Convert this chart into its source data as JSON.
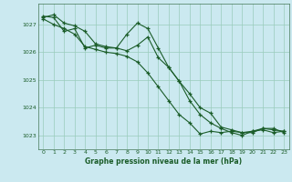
{
  "background_color": "#cbe9f0",
  "plot_bg_color": "#cbe9f0",
  "grid_color": "#99ccbb",
  "line_color": "#1a5c28",
  "xlabel": "Graphe pression niveau de la mer (hPa)",
  "ylim": [
    1022.5,
    1027.75
  ],
  "xlim": [
    -0.5,
    23.5
  ],
  "yticks": [
    1023,
    1024,
    1025,
    1026,
    1027
  ],
  "xticks": [
    0,
    1,
    2,
    3,
    4,
    5,
    6,
    7,
    8,
    9,
    10,
    11,
    12,
    13,
    14,
    15,
    16,
    17,
    18,
    19,
    20,
    21,
    22,
    23
  ],
  "series": [
    [
      1027.25,
      1027.35,
      1027.05,
      1026.95,
      1026.75,
      1026.3,
      1026.2,
      1026.15,
      1026.05,
      1026.25,
      1026.55,
      1025.8,
      1025.45,
      1024.95,
      1024.5,
      1024.0,
      1023.8,
      1023.3,
      1023.2,
      1023.1,
      1023.1,
      1023.25,
      1023.2,
      1023.15
    ],
    [
      1027.2,
      1027.0,
      1026.85,
      1026.65,
      1026.2,
      1026.1,
      1026.0,
      1025.95,
      1025.85,
      1025.65,
      1025.25,
      1024.75,
      1024.25,
      1023.75,
      1023.45,
      1023.05,
      1023.15,
      1023.1,
      1023.15,
      1023.1,
      1023.15,
      1023.2,
      1023.1,
      1023.15
    ],
    [
      1027.3,
      1027.25,
      1026.75,
      1026.85,
      1026.15,
      1026.25,
      1026.15,
      1026.15,
      1026.65,
      1027.05,
      1026.85,
      1026.15,
      1025.45,
      1024.95,
      1024.25,
      1023.75,
      1023.45,
      1023.25,
      1023.1,
      1023.0,
      1023.15,
      1023.25,
      1023.25,
      1023.1
    ]
  ]
}
